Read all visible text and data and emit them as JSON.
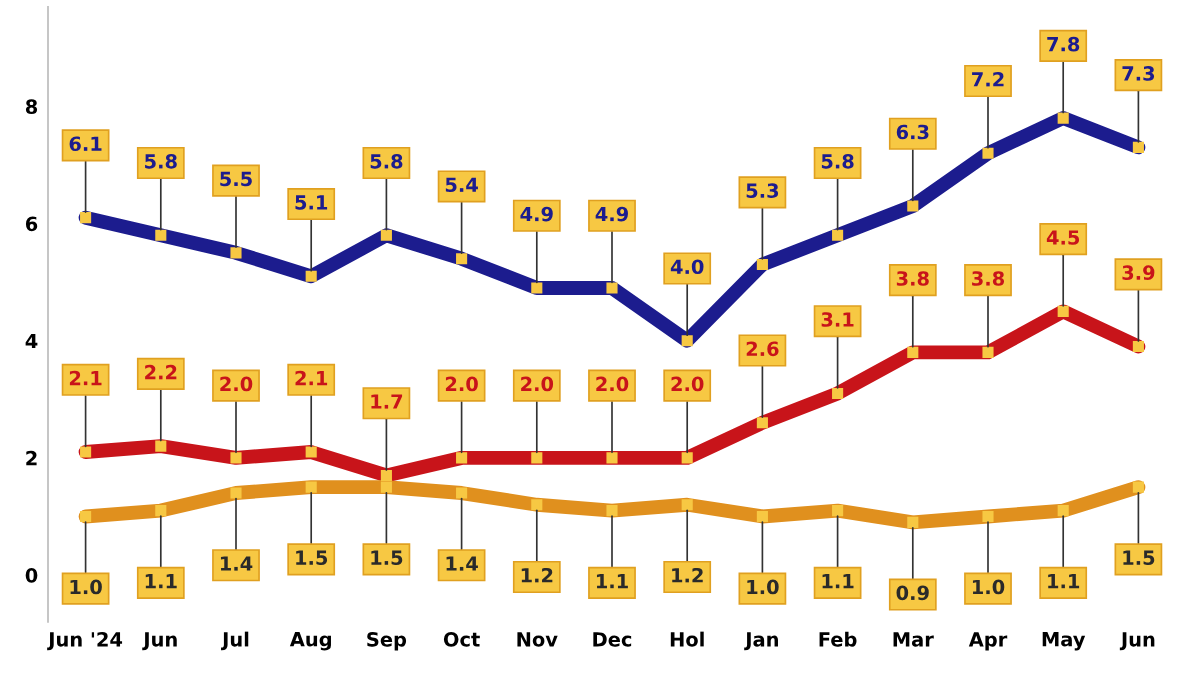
{
  "chart_data": {
    "type": "line",
    "categories": [
      "Jun '24",
      "Jun",
      "Jul",
      "Aug",
      "Sep",
      "Oct",
      "Nov",
      "Dec",
      "Hol",
      "Jan",
      "Feb",
      "Mar",
      "Apr",
      "May",
      "Jun"
    ],
    "series": [
      {
        "color": "#1c1c8e",
        "values": [
          6.1,
          5.8,
          5.5,
          5.1,
          5.8,
          5.4,
          4.9,
          4.9,
          4.0,
          5.3,
          5.8,
          6.3,
          7.2,
          7.8,
          7.3
        ],
        "value_labels": [
          "6.1",
          "5.8",
          "5.5",
          "5.1",
          "5.8",
          "5.4",
          "4.9",
          "4.9",
          "4.0",
          "5.3",
          "5.8",
          "6.3",
          "7.2",
          "7.8",
          "7.3"
        ]
      },
      {
        "color": "#c8141a",
        "values": [
          2.1,
          2.2,
          2.0,
          2.1,
          1.7,
          2.0,
          2.0,
          2.0,
          2.0,
          2.6,
          3.1,
          3.8,
          3.8,
          4.5,
          3.9
        ],
        "value_labels": [
          "2.1",
          "2.2",
          "2.0",
          "2.1",
          "1.7",
          "2.0",
          "2.0",
          "2.0",
          "2.0",
          "2.6",
          "3.1",
          "3.8",
          "3.8",
          "4.5",
          "3.9"
        ]
      },
      {
        "color": "#e0901e",
        "values": [
          1.0,
          1.1,
          1.4,
          1.5,
          1.5,
          1.4,
          1.2,
          1.1,
          1.2,
          1.0,
          1.1,
          0.9,
          1.0,
          1.1,
          1.5
        ],
        "value_labels": [
          "1.0",
          "1.1",
          "1.4",
          "1.5",
          "1.5",
          "1.4",
          "1.2",
          "1.1",
          "1.2",
          "1.0",
          "1.1",
          "0.9",
          "1.0",
          "1.1",
          "1.5"
        ]
      }
    ],
    "ylim": [
      -0.8,
      9.7
    ],
    "yticks": [
      0,
      2,
      4,
      6,
      8
    ],
    "grid": false,
    "marker": "square",
    "line_style": "solid"
  }
}
